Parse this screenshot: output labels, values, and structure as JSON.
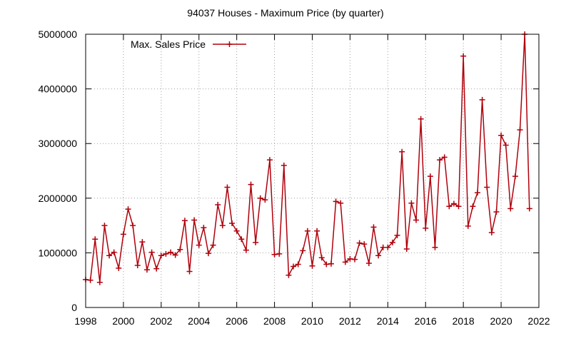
{
  "chart_data": {
    "type": "line",
    "title": "94037 Houses - Maximum Price (by quarter)",
    "xlabel": "",
    "ylabel": "",
    "xlim": [
      1998,
      2022
    ],
    "ylim": [
      0,
      5000000
    ],
    "x_ticks": [
      1998,
      2000,
      2002,
      2004,
      2006,
      2008,
      2010,
      2012,
      2014,
      2016,
      2018,
      2020,
      2022
    ],
    "y_ticks": [
      0,
      1000000,
      2000000,
      3000000,
      4000000,
      5000000
    ],
    "x_tick_labels": [
      "1998",
      "2000",
      "2002",
      "2004",
      "2006",
      "2008",
      "2010",
      "2012",
      "2014",
      "2016",
      "2018",
      "2020",
      "2022"
    ],
    "y_tick_labels": [
      "0",
      "1000000",
      "2000000",
      "3000000",
      "4000000",
      "5000000"
    ],
    "grid": true,
    "legend_position": "top-left",
    "series_color": "#b0000b",
    "series": [
      {
        "name": "Max. Sales Price",
        "points": [
          [
            1998.0,
            510000
          ],
          [
            1998.25,
            500000
          ],
          [
            1998.5,
            1250000
          ],
          [
            1998.75,
            460000
          ],
          [
            1999.0,
            1500000
          ],
          [
            1999.25,
            950000
          ],
          [
            1999.5,
            1010000
          ],
          [
            1999.75,
            720000
          ],
          [
            2000.0,
            1340000
          ],
          [
            2000.25,
            1800000
          ],
          [
            2000.5,
            1500000
          ],
          [
            2000.75,
            770000
          ],
          [
            2001.0,
            1200000
          ],
          [
            2001.25,
            690000
          ],
          [
            2001.5,
            1010000
          ],
          [
            2001.75,
            710000
          ],
          [
            2002.0,
            950000
          ],
          [
            2002.25,
            980000
          ],
          [
            2002.5,
            1010000
          ],
          [
            2002.75,
            960000
          ],
          [
            2003.0,
            1060000
          ],
          [
            2003.25,
            1590000
          ],
          [
            2003.5,
            660000
          ],
          [
            2003.75,
            1600000
          ],
          [
            2004.0,
            1140000
          ],
          [
            2004.25,
            1460000
          ],
          [
            2004.5,
            990000
          ],
          [
            2004.75,
            1140000
          ],
          [
            2005.0,
            1880000
          ],
          [
            2005.25,
            1500000
          ],
          [
            2005.5,
            2200000
          ],
          [
            2005.75,
            1540000
          ],
          [
            2006.0,
            1400000
          ],
          [
            2006.25,
            1250000
          ],
          [
            2006.5,
            1050000
          ],
          [
            2006.75,
            2250000
          ],
          [
            2007.0,
            1190000
          ],
          [
            2007.25,
            2000000
          ],
          [
            2007.5,
            1970000
          ],
          [
            2007.75,
            2700000
          ],
          [
            2008.0,
            970000
          ],
          [
            2008.25,
            980000
          ],
          [
            2008.5,
            2600000
          ],
          [
            2008.75,
            590000
          ],
          [
            2009.0,
            750000
          ],
          [
            2009.25,
            790000
          ],
          [
            2009.5,
            1040000
          ],
          [
            2009.75,
            1400000
          ],
          [
            2010.0,
            760000
          ],
          [
            2010.25,
            1400000
          ],
          [
            2010.5,
            910000
          ],
          [
            2010.75,
            790000
          ],
          [
            2011.0,
            800000
          ],
          [
            2011.25,
            1940000
          ],
          [
            2011.5,
            1910000
          ],
          [
            2011.75,
            830000
          ],
          [
            2012.0,
            890000
          ],
          [
            2012.25,
            880000
          ],
          [
            2012.5,
            1180000
          ],
          [
            2012.75,
            1160000
          ],
          [
            2013.0,
            810000
          ],
          [
            2013.25,
            1470000
          ],
          [
            2013.5,
            950000
          ],
          [
            2013.75,
            1100000
          ],
          [
            2014.0,
            1100000
          ],
          [
            2014.25,
            1190000
          ],
          [
            2014.5,
            1320000
          ],
          [
            2014.75,
            2850000
          ],
          [
            2015.0,
            1070000
          ],
          [
            2015.25,
            1910000
          ],
          [
            2015.5,
            1600000
          ],
          [
            2015.75,
            3450000
          ],
          [
            2016.0,
            1450000
          ],
          [
            2016.25,
            2400000
          ],
          [
            2016.5,
            1100000
          ],
          [
            2016.75,
            2700000
          ],
          [
            2017.0,
            2750000
          ],
          [
            2017.25,
            1850000
          ],
          [
            2017.5,
            1900000
          ],
          [
            2017.75,
            1850000
          ],
          [
            2018.0,
            4600000
          ],
          [
            2018.25,
            1490000
          ],
          [
            2018.5,
            1850000
          ],
          [
            2018.75,
            2100000
          ],
          [
            2019.0,
            3800000
          ],
          [
            2019.25,
            2200000
          ],
          [
            2019.5,
            1370000
          ],
          [
            2019.75,
            1750000
          ],
          [
            2020.0,
            3150000
          ],
          [
            2020.25,
            2970000
          ],
          [
            2020.5,
            1810000
          ],
          [
            2020.75,
            2400000
          ],
          [
            2021.0,
            3250000
          ],
          [
            2021.25,
            5000000
          ],
          [
            2021.5,
            1810000
          ]
        ]
      }
    ]
  }
}
